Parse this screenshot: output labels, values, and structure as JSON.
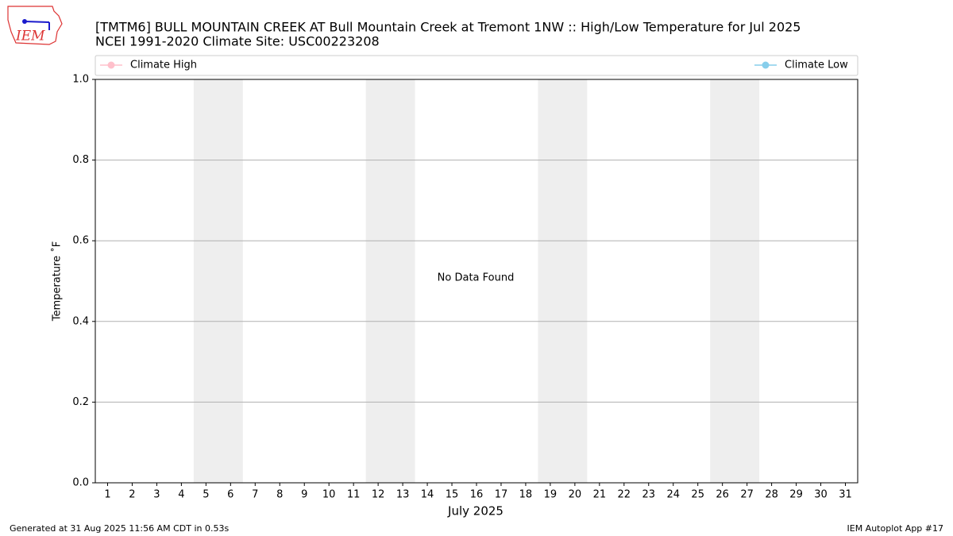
{
  "logo": {
    "text": "IEM"
  },
  "footer": {
    "left": "Generated at 31 Aug 2025 11:56 AM CDT in 0.53s",
    "right": "IEM Autoplot App #17"
  },
  "chart_data": {
    "type": "line",
    "title": "[TMTM6] BULL MOUNTAIN CREEK  AT Bull Mountain Creek at Tremont 1NW :: High/Low Temperature for Jul 2025",
    "subtitle": "NCEI 1991-2020 Climate Site: USC00223208",
    "xlabel": "July 2025",
    "ylabel": "Temperature ˚F",
    "annotation": "No Data Found",
    "x": [
      1,
      2,
      3,
      4,
      5,
      6,
      7,
      8,
      9,
      10,
      11,
      12,
      13,
      14,
      15,
      16,
      17,
      18,
      19,
      20,
      21,
      22,
      23,
      24,
      25,
      26,
      27,
      28,
      29,
      30,
      31
    ],
    "series": [
      {
        "name": "Climate High",
        "color": "pink",
        "values": [
          null,
          null,
          null,
          null,
          null,
          null,
          null,
          null,
          null,
          null,
          null,
          null,
          null,
          null,
          null,
          null,
          null,
          null,
          null,
          null,
          null,
          null,
          null,
          null,
          null,
          null,
          null,
          null,
          null,
          null,
          null
        ]
      },
      {
        "name": "Climate Low",
        "color": "skyblue",
        "values": [
          null,
          null,
          null,
          null,
          null,
          null,
          null,
          null,
          null,
          null,
          null,
          null,
          null,
          null,
          null,
          null,
          null,
          null,
          null,
          null,
          null,
          null,
          null,
          null,
          null,
          null,
          null,
          null,
          null,
          null,
          null
        ]
      }
    ],
    "shaded_ranges": [
      [
        4.5,
        6.5
      ],
      [
        11.5,
        13.5
      ],
      [
        18.5,
        20.5
      ],
      [
        25.5,
        27.5
      ]
    ],
    "shade_color": "#eeeeee",
    "xlim": [
      0.5,
      31.5
    ],
    "xticks": [
      1,
      2,
      3,
      4,
      5,
      6,
      7,
      8,
      9,
      10,
      11,
      12,
      13,
      14,
      15,
      16,
      17,
      18,
      19,
      20,
      21,
      22,
      23,
      24,
      25,
      26,
      27,
      28,
      29,
      30,
      31
    ],
    "ylim": [
      0,
      1
    ],
    "yticks": [
      {
        "value": 0,
        "label": "0.0"
      },
      0.2,
      0.4,
      0.6,
      0.8,
      {
        "value": 1,
        "label": "1.0"
      }
    ],
    "grid": true
  }
}
